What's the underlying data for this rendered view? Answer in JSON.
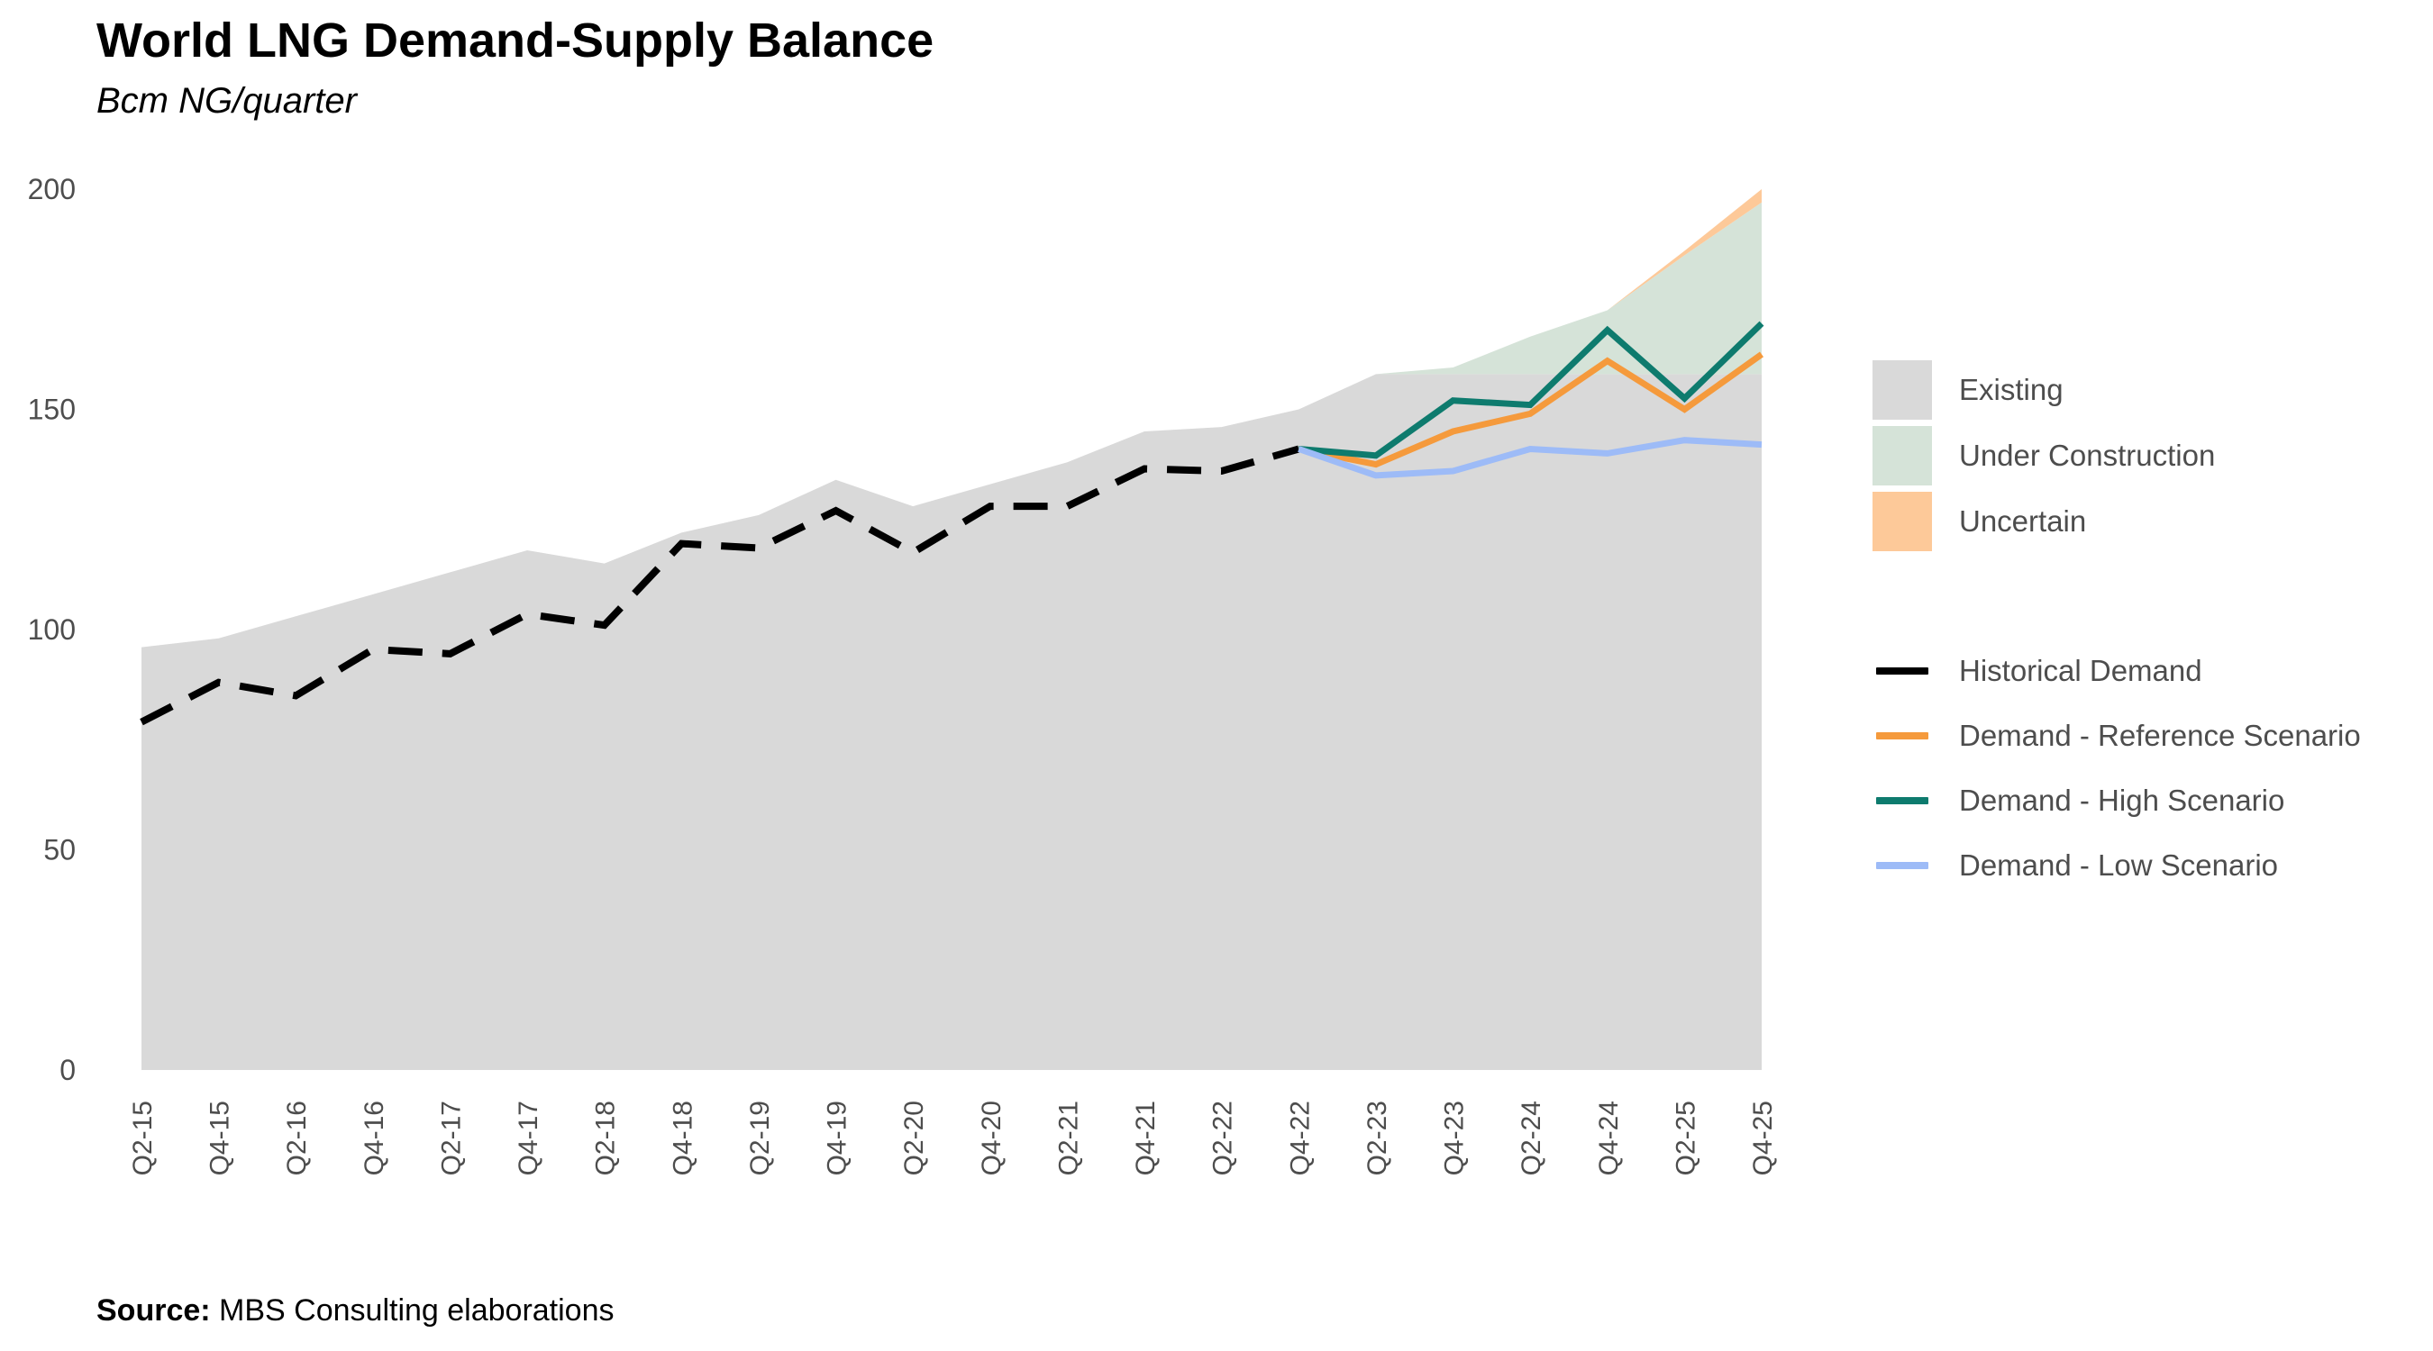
{
  "header": {
    "title": "World LNG Demand-Supply Balance",
    "subtitle": "Bcm NG/quarter"
  },
  "footer": {
    "source_label": "Source:",
    "source_text": " MBS Consulting elaborations"
  },
  "legend": {
    "areas": [
      {
        "label": "Existing",
        "color": "#d9d9d9"
      },
      {
        "label": "Under Construction",
        "color": "#d5e3d8"
      },
      {
        "label": "Uncertain",
        "color": "#fdc999"
      }
    ],
    "lines": [
      {
        "label": "Historical Demand",
        "color": "#000000"
      },
      {
        "label": "Demand - Reference Scenario",
        "color": "#f59a3c"
      },
      {
        "label": "Demand - High Scenario",
        "color": "#0e7b6e"
      },
      {
        "label": "Demand - Low Scenario",
        "color": "#9dbbf7"
      }
    ]
  },
  "chart_data": {
    "type": "area",
    "title": "World LNG Demand-Supply Balance",
    "subtitle": "Bcm NG/quarter",
    "xlabel": "",
    "ylabel": "",
    "ylim": [
      0,
      200
    ],
    "yticks": [
      0,
      50,
      100,
      150,
      200
    ],
    "grid": false,
    "legend_position": "right",
    "x": [
      "Q2-15",
      "Q4-15",
      "Q2-16",
      "Q4-16",
      "Q2-17",
      "Q4-17",
      "Q2-18",
      "Q4-18",
      "Q2-19",
      "Q4-19",
      "Q2-20",
      "Q4-20",
      "Q2-21",
      "Q4-21",
      "Q2-22",
      "Q4-22",
      "Q2-23",
      "Q4-23",
      "Q2-24",
      "Q4-24",
      "Q2-25",
      "Q4-25"
    ],
    "area_series": [
      {
        "name": "Existing",
        "color": "#d9d9d9",
        "values": [
          96,
          98,
          103,
          108,
          113,
          118,
          115,
          122,
          126,
          134,
          128,
          133,
          138,
          145,
          146,
          150,
          158,
          158,
          158,
          158,
          158,
          158
        ]
      },
      {
        "name": "Under Construction",
        "color": "#d5e3d8",
        "values": [
          0,
          0,
          0,
          0,
          0,
          0,
          0,
          0,
          0,
          0,
          0,
          0,
          0,
          0,
          0,
          0,
          0,
          1.5,
          8.5,
          14.5,
          27,
          39
        ]
      },
      {
        "name": "Uncertain",
        "color": "#fdc999",
        "values": [
          0,
          0,
          0,
          0,
          0,
          0,
          0,
          0,
          0,
          0,
          0,
          0,
          0,
          0,
          0,
          0,
          0,
          0,
          0,
          0,
          1,
          3
        ]
      }
    ],
    "series": [
      {
        "name": "Historical Demand",
        "color": "#000000",
        "dashed": true,
        "values": [
          79,
          88,
          85,
          95.5,
          94.5,
          103.5,
          101,
          119.5,
          118.5,
          127,
          117.5,
          128,
          128,
          136.5,
          136,
          141,
          null,
          null,
          null,
          null,
          null,
          null
        ]
      },
      {
        "name": "Demand - Reference Scenario",
        "color": "#f59a3c",
        "values": [
          null,
          null,
          null,
          null,
          null,
          null,
          null,
          null,
          null,
          null,
          null,
          null,
          null,
          null,
          null,
          141,
          137.5,
          145,
          149,
          161,
          150,
          162.5
        ]
      },
      {
        "name": "Demand - High Scenario",
        "color": "#0e7b6e",
        "values": [
          null,
          null,
          null,
          null,
          null,
          null,
          null,
          null,
          null,
          null,
          null,
          null,
          null,
          null,
          null,
          141,
          139.5,
          152,
          151,
          168,
          152.5,
          169.5
        ]
      },
      {
        "name": "Demand - Low Scenario",
        "color": "#9dbbf7",
        "values": [
          null,
          null,
          null,
          null,
          null,
          null,
          null,
          null,
          null,
          null,
          null,
          null,
          null,
          null,
          null,
          141,
          135,
          136,
          141,
          140,
          143,
          142
        ]
      }
    ]
  }
}
